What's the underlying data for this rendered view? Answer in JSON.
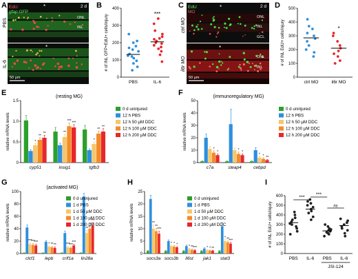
{
  "panel_letters": [
    "A",
    "B",
    "C",
    "D",
    "E",
    "F",
    "G",
    "H",
    "I"
  ],
  "panel_a": {
    "stain_edu": "EdU",
    "stain_gfp": "gfap:GFP",
    "timepoint": "2 d",
    "row1": "PBS",
    "row2": "IL-6",
    "layers": [
      "ONL",
      "INL"
    ],
    "scale": "50 µm",
    "star": "*"
  },
  "panel_c": {
    "stain_edu": "EdU",
    "stain_mo": "MO",
    "timepoint": "2 d",
    "row1": "ctrl MO",
    "row2": "il6r MO",
    "layers_top": [
      "ONL",
      "INL",
      "GCL"
    ],
    "layers_bottom": [
      "ONL",
      "INL"
    ],
    "scale": "50 µm",
    "star": "*"
  },
  "chart_data": [
    {
      "id": "B",
      "type": "scatter",
      "ylabel": "# of INL GFP+EdU+ cells/injury",
      "ylim": [
        0,
        400
      ],
      "yticks": [
        "0",
        "100",
        "200",
        "300",
        "400"
      ],
      "categories": [
        "PBS",
        "IL-6"
      ],
      "colors": [
        "#2e8fdd",
        "#e8272a"
      ],
      "points": [
        [
          40,
          60,
          80,
          95,
          110,
          120,
          125,
          135,
          150,
          160,
          170,
          180,
          200,
          210,
          250
        ],
        [
          90,
          130,
          150,
          165,
          175,
          185,
          195,
          200,
          210,
          220,
          225,
          235,
          250,
          270,
          310,
          340
        ]
      ],
      "means": [
        132,
        205
      ],
      "significance": "***"
    },
    {
      "id": "D",
      "type": "scatter",
      "ylabel": "# of INL EdU+ cells/injury",
      "ylim": [
        0,
        500
      ],
      "yticks": [
        "0",
        "100",
        "200",
        "300",
        "400",
        "500"
      ],
      "categories": [
        "ctrl MO",
        "il6r MO"
      ],
      "colors": [
        "#2e8fdd",
        "#e8272a"
      ],
      "points": [
        [
          150,
          180,
          200,
          230,
          260,
          280,
          300,
          320,
          350,
          370,
          420
        ],
        [
          100,
          120,
          150,
          170,
          190,
          210,
          230,
          260,
          300,
          320
        ]
      ],
      "means": [
        285,
        210
      ],
      "significance": "*"
    },
    {
      "id": "E",
      "type": "bar",
      "title": "(resting MG)",
      "ylabel": "relative mRNA levels",
      "ylim": [
        0,
        1.5
      ],
      "yticks": [
        "0",
        "0.5",
        "1.0",
        "1.5"
      ],
      "categories": [
        "cyp51",
        "insig1",
        "tgfb3"
      ],
      "series": [
        {
          "name": "0 d uninjured",
          "color": "#2ca02c",
          "values": [
            1.02,
            0.75,
            0.8
          ],
          "errors": [
            0.12,
            0.1,
            0.1
          ],
          "sig": [
            "",
            "",
            ""
          ]
        },
        {
          "name": "12 h PBS",
          "color": "#2e8fdd",
          "values": [
            0.28,
            0.42,
            0.3
          ],
          "errors": [
            0.03,
            0.05,
            0.03
          ],
          "sig": [
            "",
            "",
            ""
          ]
        },
        {
          "name": "12 h 50 µM DDC",
          "color": "#f6c66c",
          "values": [
            0.42,
            0.62,
            0.45
          ],
          "errors": [
            0.04,
            0.06,
            0.05
          ],
          "sig": [
            "*",
            "**",
            "*"
          ]
        },
        {
          "name": "12 h 100 µM DDC",
          "color": "#f28c28",
          "values": [
            0.55,
            0.88,
            0.7
          ],
          "errors": [
            0.05,
            0.08,
            0.06
          ],
          "sig": [
            "**",
            "***",
            "**"
          ]
        },
        {
          "name": "12 h 200 µM DDC",
          "color": "#e8272a",
          "values": [
            0.6,
            0.85,
            0.75
          ],
          "errors": [
            0.06,
            0.07,
            0.07
          ],
          "sig": [
            "**",
            "***",
            "**"
          ]
        }
      ]
    },
    {
      "id": "F",
      "type": "bar",
      "title": "(immunoregulatory MG)",
      "ylabel": "relative mRNA levels",
      "ylim": [
        0,
        50
      ],
      "yticks": [
        "0",
        "10",
        "20",
        "30",
        "40",
        "50"
      ],
      "categories": [
        "c7a",
        "steap4",
        "cebpd"
      ],
      "series": [
        {
          "name": "0 d uninjured",
          "color": "#2ca02c",
          "values": [
            1,
            1,
            1
          ],
          "errors": [
            0.3,
            0.3,
            0.3
          ],
          "sig": [
            "",
            "",
            ""
          ]
        },
        {
          "name": "12 h PBS",
          "color": "#2e8fdd",
          "values": [
            20,
            31,
            10
          ],
          "errors": [
            3,
            12,
            2
          ],
          "sig": [
            "",
            "",
            ""
          ]
        },
        {
          "name": "12 h 50 µM DDC",
          "color": "#f6c66c",
          "values": [
            11,
            10,
            4
          ],
          "errors": [
            2,
            2,
            1
          ],
          "sig": [
            "",
            "",
            "*"
          ]
        },
        {
          "name": "12 h 100 µM DDC",
          "color": "#f28c28",
          "values": [
            8,
            7,
            3
          ],
          "errors": [
            1.5,
            1.5,
            0.8
          ],
          "sig": [
            "*",
            "*",
            "*"
          ]
        },
        {
          "name": "12 h 200 µM DDC",
          "color": "#e8272a",
          "values": [
            6,
            6,
            2
          ],
          "errors": [
            1,
            1,
            0.5
          ],
          "sig": [
            "*",
            "*",
            "**"
          ]
        }
      ]
    },
    {
      "id": "G",
      "type": "bar",
      "title": "(activated MG)",
      "ylabel": "relative mRNA levels",
      "ylim": [
        0,
        100
      ],
      "yticks": [
        "0",
        "20",
        "40",
        "60",
        "80",
        "100"
      ],
      "categories": [
        "clcf1",
        "lepb",
        "crlf1a",
        "lin28a"
      ],
      "series": [
        {
          "name": "0 d uninjured",
          "color": "#2ca02c",
          "values": [
            1,
            1,
            1,
            1
          ],
          "errors": [
            0.3,
            0.3,
            0.3,
            0.3
          ],
          "sig": [
            "",
            "",
            "",
            ""
          ]
        },
        {
          "name": "1 d PBS",
          "color": "#2e8fdd",
          "values": [
            42,
            19,
            33,
            92
          ],
          "errors": [
            4,
            2,
            3,
            5
          ],
          "sig": [
            "",
            "",
            "",
            ""
          ]
        },
        {
          "name": "1 d 50 µM DDC",
          "color": "#f6c66c",
          "values": [
            15,
            11,
            10,
            33
          ],
          "errors": [
            2,
            1.5,
            1.5,
            4
          ],
          "sig": [
            "***",
            "*",
            "***",
            "**"
          ]
        },
        {
          "name": "1 d 100 µM DDC",
          "color": "#f28c28",
          "values": [
            14,
            10,
            9,
            40
          ],
          "errors": [
            2,
            1.5,
            1.5,
            4
          ],
          "sig": [
            "***",
            "**",
            "***",
            "**"
          ]
        },
        {
          "name": "1 d 200 µM DDC",
          "color": "#e8272a",
          "values": [
            13,
            9,
            13,
            45
          ],
          "errors": [
            2,
            1.5,
            2,
            5
          ],
          "sig": [
            "***",
            "**",
            "***",
            "***"
          ]
        }
      ]
    },
    {
      "id": "H",
      "type": "bar",
      "ylabel": "relative mRNA levels",
      "ylim": [
        0,
        25
      ],
      "yticks": [
        "0",
        "5",
        "10",
        "15",
        "20",
        "25"
      ],
      "categories": [
        "socs3a",
        "socs3b",
        "il6st",
        "jak1",
        "stat3"
      ],
      "series": [
        {
          "name": "0 d uninjured",
          "color": "#2ca02c",
          "values": [
            1,
            1,
            1,
            1,
            1
          ],
          "errors": [
            0.2,
            0.2,
            0.2,
            0.2,
            0.2
          ],
          "sig": [
            "",
            "",
            "",
            "",
            ""
          ]
        },
        {
          "name": "1 d PBS",
          "color": "#2e8fdd",
          "values": [
            22,
            5,
            3,
            2,
            11
          ],
          "errors": [
            1.5,
            0.5,
            0.4,
            0.3,
            1.5
          ],
          "sig": [
            "",
            "",
            "",
            "",
            ""
          ]
        },
        {
          "name": "1 d 50 µM DDC",
          "color": "#f6c66c",
          "values": [
            10,
            3,
            1.8,
            1.3,
            5
          ],
          "errors": [
            1.5,
            0.4,
            0.3,
            0.2,
            0.6
          ],
          "sig": [
            "**",
            "*",
            "*",
            "*",
            "*"
          ]
        },
        {
          "name": "1 d 100 µM DDC",
          "color": "#f28c28",
          "values": [
            9,
            2.8,
            1.5,
            1.2,
            4.5
          ],
          "errors": [
            1.2,
            0.4,
            0.3,
            0.2,
            0.5
          ],
          "sig": [
            "**",
            "*",
            "**",
            "*",
            "**"
          ]
        },
        {
          "name": "1 d 200 µM DDC",
          "color": "#e8272a",
          "values": [
            8,
            2.5,
            1.3,
            1.1,
            4
          ],
          "errors": [
            1,
            0.3,
            0.2,
            0.2,
            0.5
          ],
          "sig": [
            "***",
            "*",
            "***",
            "**",
            "***"
          ]
        }
      ]
    },
    {
      "id": "I",
      "type": "scatter",
      "ylabel": "# of INL EdU+ cells/injury",
      "ylim": [
        0,
        600
      ],
      "yticks": [
        "0",
        "100",
        "200",
        "300",
        "400",
        "500",
        "600"
      ],
      "categories": [
        "PBS",
        "IL-6",
        "PBS",
        "IL-6"
      ],
      "group_label": "JSI-124",
      "colors": [
        "#222222",
        "#222222",
        "#222222",
        "#222222"
      ],
      "points": [
        [
          200,
          230,
          260,
          280,
          300,
          310,
          330,
          350,
          370,
          400,
          430
        ],
        [
          350,
          380,
          420,
          440,
          460,
          480,
          500,
          520,
          540,
          560
        ],
        [
          180,
          200,
          210,
          220,
          230,
          240,
          250,
          260,
          280,
          300
        ],
        [
          180,
          210,
          240,
          260,
          280,
          300,
          320,
          340,
          360
        ]
      ],
      "means": [
        320,
        460,
        235,
        290
      ],
      "comparisons": [
        {
          "from": 0,
          "to": 1,
          "label": "***"
        },
        {
          "from": 1,
          "to": 2,
          "label": "***"
        },
        {
          "from": 2,
          "to": 3,
          "label": "ns"
        }
      ]
    }
  ]
}
